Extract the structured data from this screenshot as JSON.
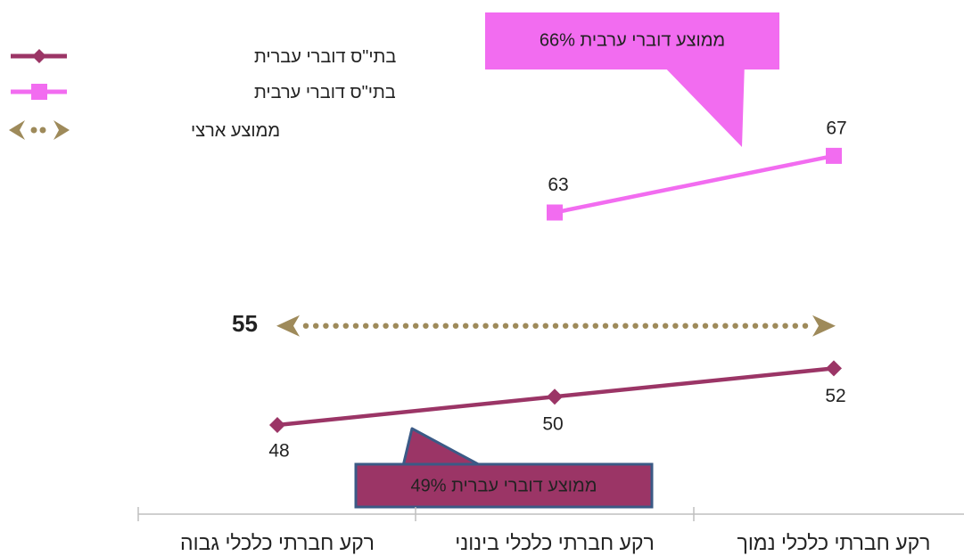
{
  "chart_data": {
    "type": "line",
    "categories": [
      "רקע חברתי כלכלי גבוה",
      "רקע חברתי כלכלי בינוני",
      "רקע חברתי כלכלי נמוך"
    ],
    "ylim": [
      40,
      75
    ],
    "series": [
      {
        "name": "בתי\"ס דוברי עברית",
        "color": "#9b3566",
        "marker": "diamond",
        "values": [
          48,
          50,
          52
        ],
        "labels": [
          "48",
          "50",
          "52"
        ]
      },
      {
        "name": "בתי\"ס דוברי ערבית",
        "color": "#f26cf0",
        "marker": "square",
        "values": [
          null,
          63,
          67
        ],
        "labels": [
          "",
          "63",
          "67"
        ]
      }
    ],
    "national_average": {
      "label": "ממוצע ארצי",
      "value": 55,
      "value_text": "55",
      "color": "#9e8a5a"
    },
    "callouts": {
      "arabic_average": "ממוצע דוברי ערבית 66%",
      "hebrew_average": "ממוצע דוברי עברית 49%"
    },
    "callout_colors": {
      "arabic": "#f26cf0",
      "hebrew": "#9b3566"
    }
  }
}
